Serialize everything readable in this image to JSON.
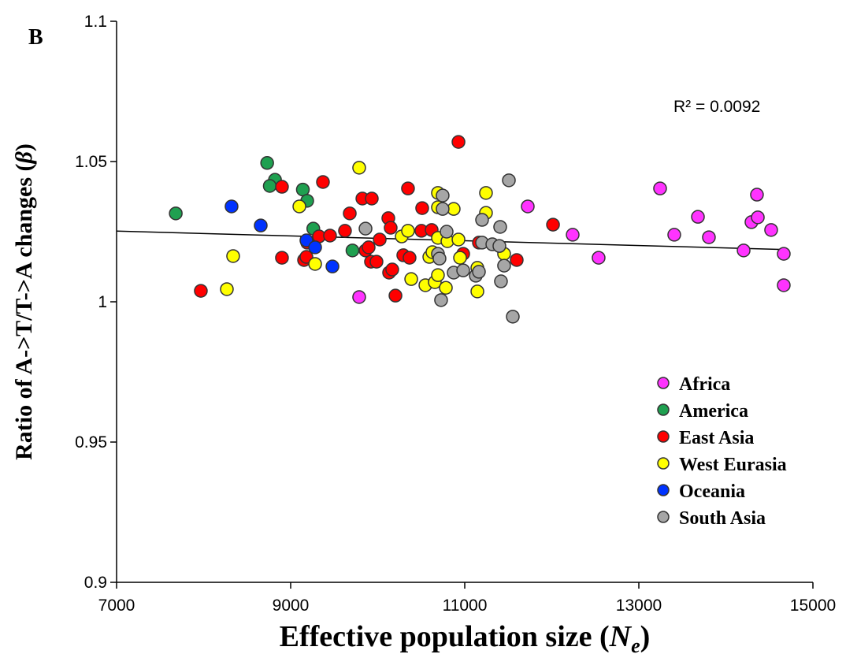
{
  "chart_data": {
    "type": "scatter",
    "panel_label": "B",
    "xlabel_parts": [
      "Effective population size (",
      "N",
      "e",
      ")"
    ],
    "ylabel_parts": [
      "Ratio of A->T/T->A changes (",
      "β",
      ")"
    ],
    "annotation": "R² = 0.0092",
    "xlim": [
      7000,
      15000
    ],
    "xticks": [
      7000,
      9000,
      11000,
      13000,
      15000
    ],
    "ylim": [
      0.9,
      1.1
    ],
    "yticks": [
      0.9,
      0.95,
      1,
      1.05,
      1.1
    ],
    "legend_position": "lower right",
    "trendline": {
      "x": [
        7000,
        14700
      ],
      "y": [
        1.0252,
        1.0186
      ]
    },
    "series": [
      {
        "name": "Africa",
        "color": "#ff33ff",
        "x": [
          13244,
          13407,
          13679,
          13805,
          14204,
          14294,
          14367,
          14357,
          14520,
          14665,
          14665,
          12538,
          12240,
          9787,
          11724
        ],
        "y": [
          1.0404,
          1.0239,
          1.0303,
          1.023,
          1.0183,
          1.0284,
          1.0301,
          1.0382,
          1.0256,
          1.0171,
          1.0059,
          1.0157,
          1.0239,
          1.0017,
          1.034
        ]
      },
      {
        "name": "America",
        "color": "#1fa050",
        "x": [
          7680,
          8730,
          9140,
          9190,
          8820,
          8760,
          9710,
          9260
        ],
        "y": [
          1.0315,
          1.0495,
          1.04,
          1.036,
          1.0435,
          1.0413,
          1.0183,
          1.0261
        ]
      },
      {
        "name": "East Asia",
        "color": "#ff0000",
        "x": [
          7968,
          8900,
          8900,
          9154,
          9181,
          9190,
          9326,
          9371,
          9452,
          9624,
          9679,
          9824,
          9860,
          9932,
          9896,
          9923,
          9986,
          10023,
          10122,
          10149,
          10131,
          10167,
          10204,
          10294,
          10348,
          10366,
          10502,
          10511,
          10620,
          10928,
          10982,
          11163,
          11597,
          12014
        ],
        "y": [
          1.0039,
          1.041,
          1.0157,
          1.0149,
          1.016,
          1.0211,
          1.0233,
          1.0427,
          1.0236,
          1.0253,
          1.0315,
          1.0368,
          1.0183,
          1.0368,
          1.0194,
          1.0143,
          1.0143,
          1.0222,
          1.0298,
          1.0264,
          1.0104,
          1.0115,
          1.0022,
          1.0166,
          1.0404,
          1.0157,
          1.0253,
          1.0334,
          1.0256,
          1.057,
          1.0171,
          1.0211,
          1.0149,
          1.0275
        ]
      },
      {
        "name": "West Eurasia",
        "color": "#ffff00",
        "x": [
          8267,
          8339,
          9100,
          9281,
          9787,
          10276,
          10348,
          10385,
          10548,
          10593,
          10629,
          10656,
          10692,
          10692,
          10692,
          10692,
          10783,
          10801,
          10873,
          10928,
          10946,
          11145,
          11145,
          11244,
          11244,
          11452
        ],
        "y": [
          1.0045,
          1.0163,
          1.034,
          1.0135,
          1.0478,
          1.0233,
          1.0253,
          1.0081,
          1.0059,
          1.016,
          1.0177,
          1.007,
          1.0228,
          1.0388,
          1.0337,
          1.0095,
          1.005,
          1.0216,
          1.0331,
          1.0222,
          1.0157,
          1.0121,
          1.0037,
          1.0388,
          1.0317,
          1.0171
        ]
      },
      {
        "name": "Oceania",
        "color": "#0033ff",
        "x": [
          8321,
          8656,
          9181,
          9281,
          9480
        ],
        "y": [
          1.034,
          1.0272,
          1.0219,
          1.0194,
          1.0126
        ]
      },
      {
        "name": "South Asia",
        "color": "#a6a6a6",
        "x": [
          9860,
          10692,
          10710,
          10746,
          10746,
          10792,
          10728,
          10873,
          10982,
          11127,
          11163,
          11199,
          11199,
          11317,
          11398,
          11407,
          11452,
          11416,
          11507,
          11552
        ],
        "y": [
          1.0261,
          1.0171,
          1.0154,
          1.0379,
          1.0331,
          1.025,
          1.0006,
          1.0104,
          1.0112,
          1.0093,
          1.0107,
          1.0292,
          1.0211,
          1.0205,
          1.0199,
          1.0267,
          1.0129,
          1.0073,
          1.0433,
          0.9947
        ]
      }
    ]
  }
}
